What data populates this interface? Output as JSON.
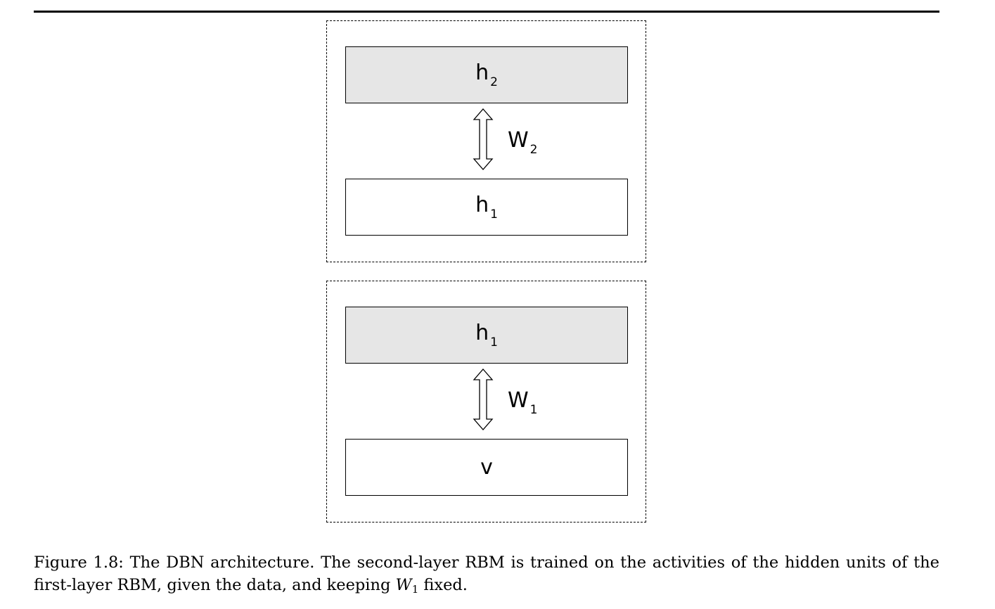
{
  "figure": {
    "top_block": {
      "upper_layer": {
        "name": "h",
        "subscript": "2"
      },
      "weight": {
        "name": "W",
        "subscript": "2"
      },
      "lower_layer": {
        "name": "h",
        "subscript": "1"
      }
    },
    "bottom_block": {
      "upper_layer": {
        "name": "h",
        "subscript": "1"
      },
      "weight": {
        "name": "W",
        "subscript": "1"
      },
      "lower_layer": {
        "name": "v"
      }
    },
    "colors": {
      "shaded_layer": "#e6e6e6",
      "plain_layer": "#ffffff",
      "border": "#000000"
    }
  },
  "caption": {
    "text_before": "Figure 1.8: The DBN architecture. The second-layer RBM is trained on the activities of the hidden units of the first-layer RBM, given the data, and keeping ",
    "math_symbol": "W",
    "math_subscript": "1",
    "text_after": " fixed."
  }
}
